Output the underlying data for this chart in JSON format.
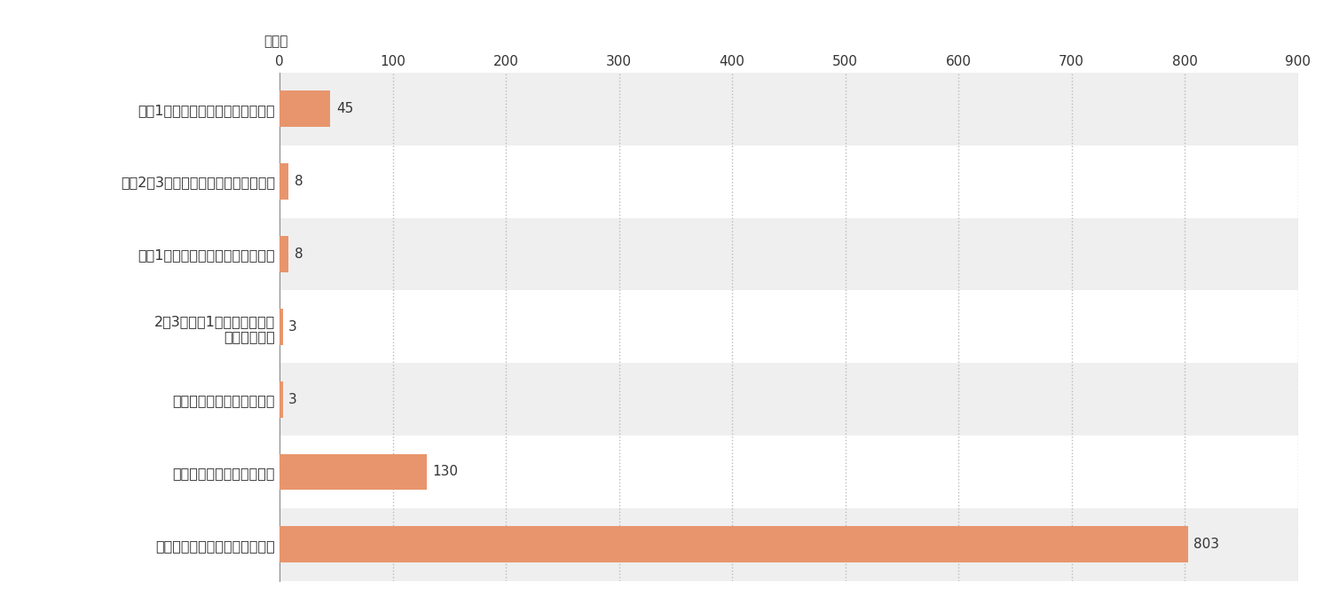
{
  "categories": [
    "週に1回（コマ）以上利用している",
    "月に2〜3回（コマ）程度利用している",
    "月に1回（コマ）程度利用している",
    "2〜3ヶ月に1回（コマ）程度\n利用している",
    "年に数回程度の利用頻度だ",
    "かつて利用したことがある",
    "まだ一度も利用したことがない"
  ],
  "values": [
    45,
    8,
    8,
    3,
    3,
    130,
    803
  ],
  "bar_color": "#E8956D",
  "bg_gray": "#EFEFEF",
  "bg_white": "#FFFFFF",
  "axis_color": "#888888",
  "text_color": "#333333",
  "grid_color": "#BBBBBB",
  "xlabel_unit": "（人）",
  "xlim": [
    0,
    900
  ],
  "xticks": [
    0,
    100,
    200,
    300,
    400,
    500,
    600,
    700,
    800,
    900
  ],
  "bar_height": 0.5,
  "label_fontsize": 11.5,
  "tick_fontsize": 11,
  "unit_fontsize": 11,
  "value_fontsize": 11
}
